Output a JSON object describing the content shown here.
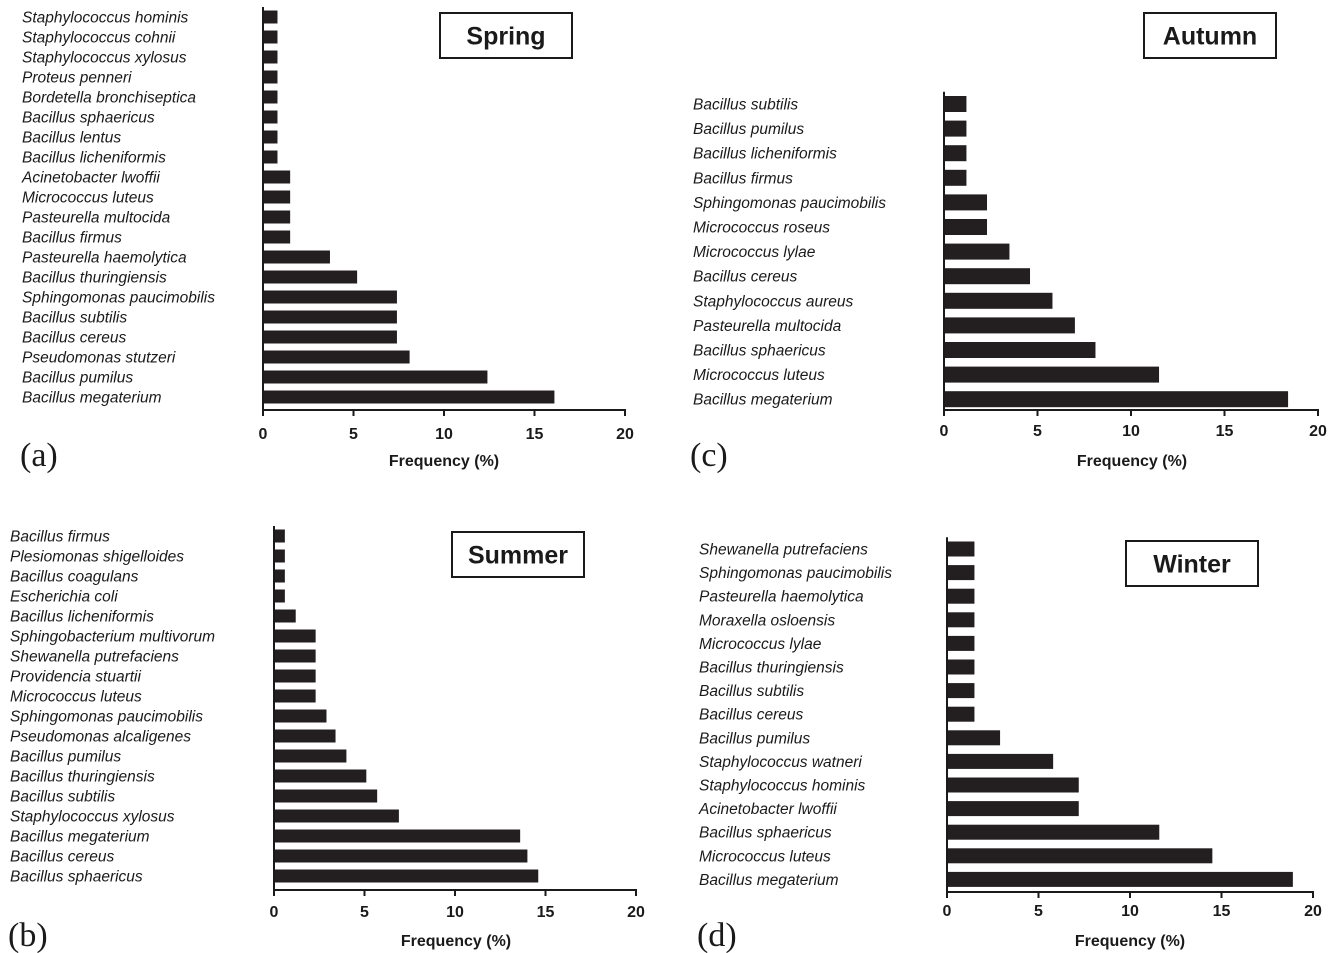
{
  "chart_data": [
    {
      "type": "bar",
      "orientation": "horizontal",
      "panel_label": "(a)",
      "title": "Spring",
      "xlabel": "Frequency (%)",
      "xlim": [
        0,
        20
      ],
      "xticks": [
        "0",
        "5",
        "10",
        "15",
        "20"
      ],
      "categories": [
        "Staphylococcus hominis",
        "Staphylococcus cohnii",
        "Staphylococcus xylosus",
        "Proteus penneri",
        "Bordetella bronchiseptica",
        "Bacillus sphaericus",
        "Bacillus lentus",
        "Bacillus licheniformis",
        "Acinetobacter lwoffii",
        "Micrococcus luteus",
        "Pasteurella multocida",
        "Bacillus firmus",
        "Pasteurella haemolytica",
        "Bacillus thuringiensis",
        "Sphingomonas paucimobilis",
        "Bacillus subtilis",
        "Bacillus cereus",
        "Pseudomonas stutzeri",
        "Bacillus pumilus",
        "Bacillus megaterium"
      ],
      "values": [
        0.8,
        0.8,
        0.8,
        0.8,
        0.8,
        0.8,
        0.8,
        0.8,
        1.5,
        1.5,
        1.5,
        1.5,
        3.7,
        5.2,
        7.4,
        7.4,
        7.4,
        8.1,
        12.4,
        16.1
      ],
      "bar_color": "#231f20"
    },
    {
      "type": "bar",
      "orientation": "horizontal",
      "panel_label": "(b)",
      "title": "Summer",
      "xlabel": "Frequency (%)",
      "xlim": [
        0,
        20
      ],
      "xticks": [
        "0",
        "5",
        "10",
        "15",
        "20"
      ],
      "categories": [
        "Bacillus firmus",
        "Plesiomonas shigelloides",
        "Bacillus coagulans",
        "Escherichia coli",
        "Bacillus licheniformis",
        "Sphingobacterium multivorum",
        "Shewanella putrefaciens",
        "Providencia stuartii",
        "Micrococcus luteus",
        "Sphingomonas paucimobilis",
        "Pseudomonas alcaligenes",
        "Bacillus pumilus",
        "Bacillus thuringiensis",
        "Bacillus subtilis",
        "Staphylococcus xylosus",
        "Bacillus megaterium",
        "Bacillus cereus",
        "Bacillus sphaericus"
      ],
      "values": [
        0.6,
        0.6,
        0.6,
        0.6,
        1.2,
        2.3,
        2.3,
        2.3,
        2.3,
        2.9,
        3.4,
        4.0,
        5.1,
        5.7,
        6.9,
        13.6,
        14.0,
        14.6
      ],
      "bar_color": "#231f20"
    },
    {
      "type": "bar",
      "orientation": "horizontal",
      "panel_label": "(c)",
      "title": "Autumn",
      "xlabel": "Frequency (%)",
      "xlim": [
        0,
        20
      ],
      "xticks": [
        "0",
        "5",
        "10",
        "15",
        "20"
      ],
      "categories": [
        "Bacillus subtilis",
        "Bacillus pumilus",
        "Bacillus licheniformis",
        "Bacillus firmus",
        "Sphingomonas paucimobilis",
        "Micrococcus roseus",
        "Micrococcus lylae",
        "Bacillus cereus",
        "Staphylococcus aureus",
        "Pasteurella multocida",
        "Bacillus sphaericus",
        "Micrococcus luteus",
        "Bacillus megaterium"
      ],
      "values": [
        1.2,
        1.2,
        1.2,
        1.2,
        2.3,
        2.3,
        3.5,
        4.6,
        5.8,
        7.0,
        8.1,
        11.5,
        18.4
      ],
      "bar_color": "#231f20"
    },
    {
      "type": "bar",
      "orientation": "horizontal",
      "panel_label": "(d)",
      "title": "Winter",
      "xlabel": "Frequency (%)",
      "xlim": [
        0,
        20
      ],
      "xticks": [
        "0",
        "5",
        "10",
        "15",
        "20"
      ],
      "categories": [
        "Shewanella putrefaciens",
        "Sphingomonas paucimobilis",
        "Pasteurella haemolytica",
        "Moraxella osloensis",
        "Micrococcus lylae",
        "Bacillus thuringiensis",
        "Bacillus subtilis",
        "Bacillus cereus",
        "Bacillus pumilus",
        "Staphylococcus watneri",
        "Staphylococcus hominis",
        "Acinetobacter lwoffii",
        "Bacillus sphaericus",
        "Micrococcus luteus",
        "Bacillus megaterium"
      ],
      "values": [
        1.5,
        1.5,
        1.5,
        1.5,
        1.5,
        1.5,
        1.5,
        1.5,
        2.9,
        5.8,
        7.2,
        7.2,
        11.6,
        14.5,
        18.9
      ],
      "bar_color": "#231f20"
    }
  ]
}
